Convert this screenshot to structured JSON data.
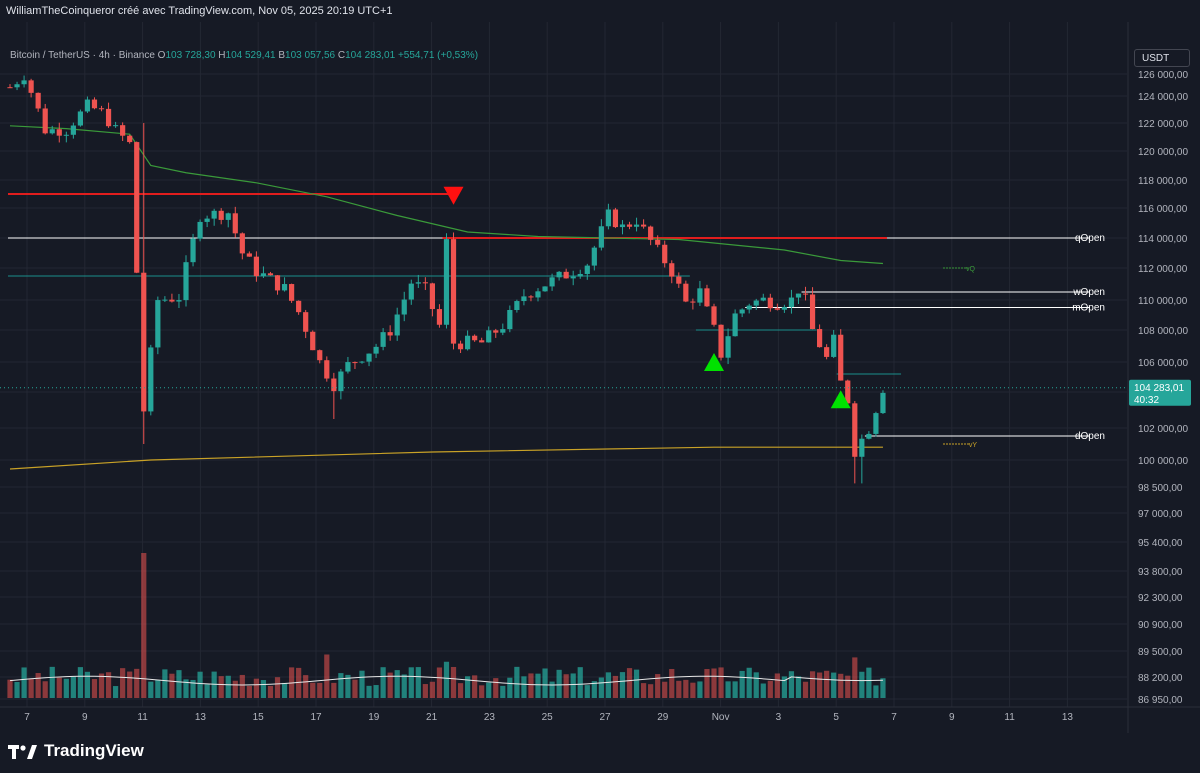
{
  "header": {
    "caption": "WilliamTheCoinqueror créé avec TradingView.com, Nov 05, 2025 20:19 UTC+1"
  },
  "legend": {
    "symbol": "Bitcoin / TetherUS · 4h · Binance",
    "open_label": "O",
    "open": "103 728,30",
    "high_label": "H",
    "high": "104 529,41",
    "low_label": "B",
    "low": "103 057,56",
    "close_label": "C",
    "close": "104 283,01",
    "change": "+554,71 (+0,53%)"
  },
  "currency_button": "USDT",
  "last_price": {
    "value": "104 283,01",
    "countdown": "40:32"
  },
  "branding": {
    "name": "TradingView"
  },
  "colors": {
    "up": "#26a69a",
    "down": "#ef5350",
    "background": "#161a25",
    "grid": "#232733",
    "level_red": "#e11d1d",
    "level_white": "#ffffff",
    "level_teal": "#1b8f8b",
    "ma_green": "#3a9a3a",
    "ma_yellow": "#c9a227",
    "marker_green": "#00e200",
    "marker_red": "#ff1010"
  },
  "chart_data": {
    "type": "candlestick",
    "symbol": "Bitcoin / TetherUS",
    "interval": "4h",
    "exchange": "Binance",
    "price_range": [
      86950,
      127000
    ],
    "x_ticks": [
      "7",
      "9",
      "11",
      "13",
      "15",
      "17",
      "19",
      "21",
      "23",
      "25",
      "27",
      "29",
      "Nov",
      "3",
      "5",
      "7",
      "9",
      "11",
      "13"
    ],
    "price_ticks": [
      126000,
      124000,
      122000,
      120000,
      118000,
      116000,
      114000,
      112000,
      110000,
      108000,
      106000,
      104000,
      102000,
      100000,
      98500,
      97000,
      95400,
      93800,
      92300,
      90900,
      89500,
      88200,
      86950
    ],
    "price_tick_labels": [
      "126 000,00",
      "124 000,00",
      "122 000,00",
      "120 000,00",
      "118 000,00",
      "116 000,00",
      "114 000,00",
      "112 000,00",
      "110 000,00",
      "108 000,00",
      "106 000,00",
      "104 000,00",
      "102 000,00",
      "100 000,00",
      "98 500,00",
      "97 000,00",
      "95 400,00",
      "93 800,00",
      "92 300,00",
      "90 900,00",
      "89 500,00",
      "88 200,00",
      "86 950,00"
    ],
    "path_points": [
      [
        0,
        124800
      ],
      [
        2,
        125800
      ],
      [
        5,
        121500
      ],
      [
        8,
        121500
      ],
      [
        11,
        123300
      ],
      [
        13,
        122800
      ],
      [
        15,
        121500
      ],
      [
        17,
        120500
      ],
      [
        19,
        103000
      ],
      [
        21,
        110000
      ],
      [
        24,
        110200
      ],
      [
        27,
        115500
      ],
      [
        31,
        115700
      ],
      [
        33,
        113000
      ],
      [
        35,
        111800
      ],
      [
        39,
        110700
      ],
      [
        41,
        109200
      ],
      [
        44,
        106000
      ],
      [
        46,
        104500
      ],
      [
        48,
        105800
      ],
      [
        52,
        107000
      ],
      [
        54,
        108000
      ],
      [
        57,
        111100
      ],
      [
        59,
        110600
      ],
      [
        61,
        108300
      ],
      [
        62,
        113700
      ],
      [
        63,
        107200
      ],
      [
        67,
        107200
      ],
      [
        70,
        108300
      ],
      [
        73,
        110300
      ],
      [
        76,
        111000
      ],
      [
        80,
        111800
      ],
      [
        82,
        112300
      ],
      [
        85,
        115500
      ],
      [
        87,
        114700
      ],
      [
        89,
        115200
      ],
      [
        91,
        113800
      ],
      [
        94,
        111800
      ],
      [
        96,
        109800
      ],
      [
        98,
        110500
      ],
      [
        100,
        108000
      ],
      [
        101,
        106500
      ],
      [
        103,
        109000
      ],
      [
        105,
        109800
      ],
      [
        107,
        110000
      ],
      [
        109,
        109800
      ],
      [
        111,
        110000
      ],
      [
        112,
        110700
      ],
      [
        113,
        109900
      ],
      [
        114,
        108000
      ],
      [
        116,
        106200
      ],
      [
        117,
        107300
      ],
      [
        118,
        104600
      ],
      [
        119,
        103600
      ],
      [
        120,
        100600
      ],
      [
        122,
        102000
      ],
      [
        124,
        104300
      ]
    ],
    "candle_count": 125,
    "volume_range": [
      0,
      100
    ],
    "volume_spikes": [
      [
        19,
        100
      ],
      [
        45,
        30
      ],
      [
        62,
        25
      ],
      [
        94,
        20
      ],
      [
        120,
        28
      ]
    ],
    "levels": [
      {
        "label": "qOpen",
        "price": 114000,
        "color": "white",
        "from_candle": 0
      },
      {
        "label": "wOpen",
        "price": 110500,
        "color": "white",
        "from_candle": 113
      },
      {
        "label": "mOpen",
        "price": 109500,
        "color": "white",
        "from_candle": 105
      },
      {
        "label": "dOpen",
        "price": 101500,
        "color": "white",
        "from_candle": 122
      },
      {
        "label": "",
        "price": 117000,
        "color": "red",
        "from_candle": 0,
        "to_candle": 63
      },
      {
        "label": "",
        "price": 114000,
        "color": "red",
        "from_candle": 62,
        "to_candle": 124
      },
      {
        "label": "",
        "price": 111500,
        "color": "teal",
        "from_candle": 0,
        "to_candle": 96
      },
      {
        "label": "",
        "price": 108000,
        "color": "teal",
        "from_candle": 98,
        "to_candle": 114
      },
      {
        "label": "",
        "price": 105200,
        "color": "teal",
        "from_candle": 118,
        "to_candle": 126
      }
    ],
    "vq_label": "vQ",
    "vy_label": "vY",
    "ma_green": [
      [
        0,
        121800
      ],
      [
        8,
        121600
      ],
      [
        17,
        121200
      ],
      [
        20,
        119000
      ],
      [
        25,
        118500
      ],
      [
        35,
        117800
      ],
      [
        45,
        116800
      ],
      [
        55,
        115500
      ],
      [
        65,
        114400
      ],
      [
        75,
        114100
      ],
      [
        85,
        114000
      ],
      [
        95,
        113900
      ],
      [
        110,
        113200
      ],
      [
        118,
        112500
      ],
      [
        124,
        112300
      ]
    ],
    "ma_yellow": [
      [
        0,
        99500
      ],
      [
        20,
        100000
      ],
      [
        60,
        100500
      ],
      [
        100,
        100800
      ],
      [
        124,
        100800
      ]
    ],
    "markers": [
      {
        "type": "down",
        "candle": 63,
        "price": 116800,
        "color": "red"
      },
      {
        "type": "up",
        "candle": 100,
        "price": 106000,
        "color": "green"
      },
      {
        "type": "up",
        "candle": 118,
        "price": 103600,
        "color": "green"
      }
    ]
  }
}
